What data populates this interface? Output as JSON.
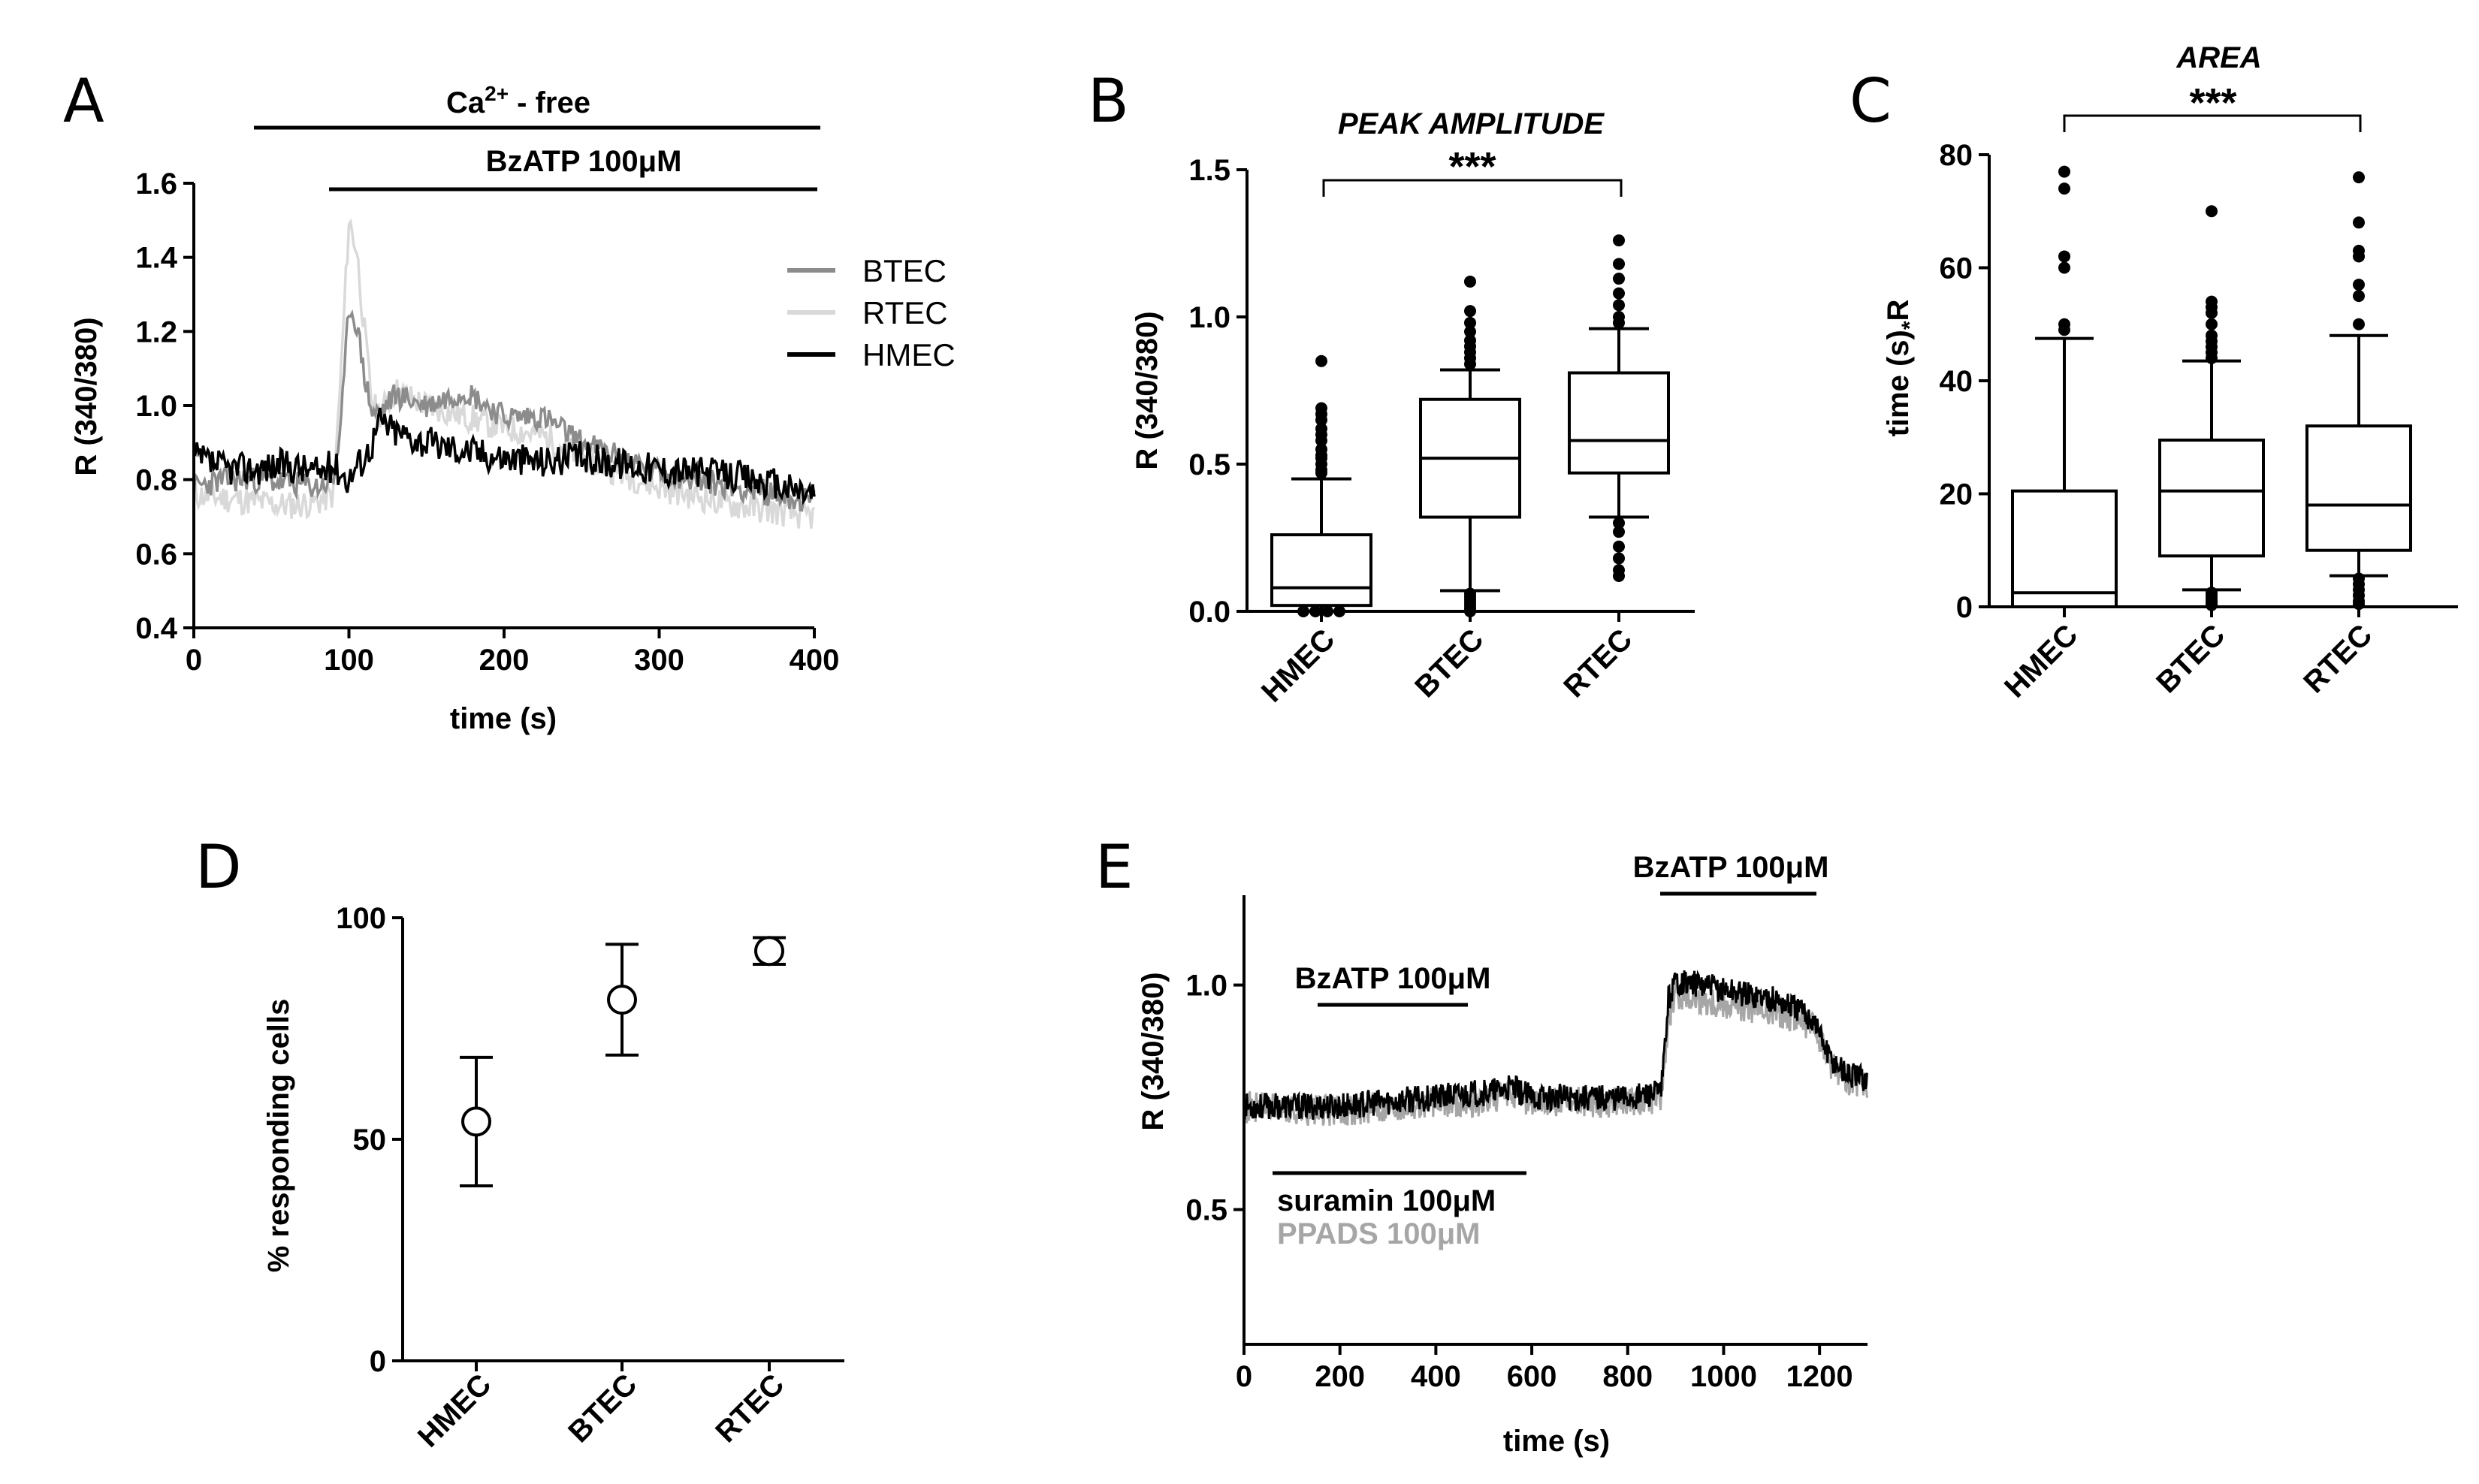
{
  "panels": {
    "A": {
      "letter": "A",
      "ca_label": "Ca",
      "ca_sup": "2+",
      "ca_suffix": " - free",
      "bzatp_label": "BzATP 100μM"
    },
    "B": {
      "letter": "B"
    },
    "C": {
      "letter": "C"
    },
    "D": {
      "letter": "D"
    },
    "E": {
      "letter": "E",
      "bzatp_label_1": "BzATP 100μM",
      "bzatp_label_2": "BzATP 100μM",
      "suramin_label": "suramin 100μM",
      "ppads_label": "PPADS 100μM"
    }
  },
  "colors": {
    "BTEC": "#8c8c8c",
    "RTEC": "#d9d9d9",
    "HMEC": "#000000",
    "suramin": "#000000",
    "PPADS": "#a6a6a6"
  },
  "chart_data": [
    {
      "id": "A",
      "type": "line",
      "xlabel": "time (s)",
      "ylabel": "R (340/380)",
      "xlim": [
        0,
        400
      ],
      "ylim": [
        0.4,
        1.6
      ],
      "xticks": [
        "0",
        "100",
        "200",
        "300",
        "400"
      ],
      "yticks": [
        "0.4",
        "0.6",
        "0.8",
        "1.0",
        "1.2",
        "1.4",
        "1.6"
      ],
      "legend": [
        "BTEC",
        "RTEC",
        "HMEC"
      ],
      "series": [
        {
          "name": "BTEC",
          "x": [
            0,
            20,
            40,
            60,
            80,
            90,
            95,
            100,
            105,
            110,
            115,
            120,
            130,
            150,
            175,
            200,
            225,
            250,
            300,
            350,
            400
          ],
          "y": [
            0.78,
            0.8,
            0.8,
            0.79,
            0.78,
            0.8,
            0.95,
            1.27,
            1.22,
            1.08,
            0.98,
            0.98,
            1.03,
            1.0,
            1.04,
            0.97,
            0.97,
            0.9,
            0.82,
            0.78,
            0.74
          ]
        },
        {
          "name": "RTEC",
          "x": [
            0,
            20,
            40,
            60,
            80,
            90,
            95,
            100,
            105,
            110,
            115,
            120,
            130,
            150,
            175,
            200,
            225,
            250,
            300,
            350,
            400
          ],
          "y": [
            0.76,
            0.75,
            0.74,
            0.73,
            0.74,
            0.76,
            1.1,
            1.5,
            1.42,
            1.2,
            1.0,
            0.98,
            1.04,
            1.0,
            0.97,
            0.94,
            0.92,
            0.86,
            0.78,
            0.73,
            0.7
          ]
        },
        {
          "name": "HMEC",
          "x": [
            0,
            20,
            40,
            60,
            80,
            90,
            95,
            100,
            105,
            110,
            115,
            120,
            130,
            150,
            175,
            200,
            225,
            250,
            300,
            350,
            400
          ],
          "y": [
            0.86,
            0.83,
            0.83,
            0.84,
            0.82,
            0.84,
            0.82,
            0.8,
            0.84,
            0.86,
            0.9,
            0.96,
            0.93,
            0.9,
            0.88,
            0.86,
            0.85,
            0.86,
            0.83,
            0.81,
            0.76
          ]
        }
      ]
    },
    {
      "id": "B",
      "type": "box",
      "title": "PEAK AMPLITUDE",
      "ylabel": "R (340/380)",
      "categories": [
        "HMEC",
        "BTEC",
        "RTEC"
      ],
      "ylim": [
        0,
        1.5
      ],
      "yticks": [
        "0.0",
        "0.5",
        "1.0",
        "1.5"
      ],
      "significance": "***",
      "boxes": [
        {
          "name": "HMEC",
          "whisker_low": 0.0,
          "q1": 0.02,
          "median": 0.08,
          "q3": 0.26,
          "whisker_high": 0.45,
          "outliers": [
            0.47,
            0.48,
            0.5,
            0.52,
            0.53,
            0.55,
            0.58,
            0.6,
            0.62,
            0.65,
            0.67,
            0.69,
            0.85,
            0.0,
            0.0,
            0.0,
            0.0
          ]
        },
        {
          "name": "BTEC",
          "whisker_low": 0.07,
          "q1": 0.32,
          "median": 0.52,
          "q3": 0.72,
          "whisker_high": 0.82,
          "outliers": [
            0.84,
            0.86,
            0.88,
            0.9,
            0.92,
            0.95,
            0.98,
            1.02,
            1.12,
            0.06,
            0.05,
            0.04,
            0.03,
            0.02,
            0.01,
            0.0
          ]
        },
        {
          "name": "RTEC",
          "whisker_low": 0.32,
          "q1": 0.47,
          "median": 0.58,
          "q3": 0.81,
          "whisker_high": 0.96,
          "outliers": [
            0.98,
            1.0,
            1.04,
            1.08,
            1.13,
            1.18,
            1.26,
            0.3,
            0.27,
            0.22,
            0.18,
            0.14,
            0.12
          ]
        }
      ]
    },
    {
      "id": "C",
      "type": "box",
      "title": "AREA",
      "ylabel_main": "time (s)",
      "ylabel_op": "*",
      "ylabel_end": "R",
      "categories": [
        "HMEC",
        "BTEC",
        "RTEC"
      ],
      "ylim": [
        0,
        80
      ],
      "yticks": [
        "0",
        "20",
        "40",
        "60",
        "80"
      ],
      "significance": "***",
      "boxes": [
        {
          "name": "HMEC",
          "whisker_low": 0,
          "q1": 0,
          "median": 2.5,
          "q3": 20.5,
          "whisker_high": 47.5,
          "outliers": [
            49,
            50,
            60,
            62,
            74,
            77
          ]
        },
        {
          "name": "BTEC",
          "whisker_low": 3,
          "q1": 9,
          "median": 20.5,
          "q3": 29.5,
          "whisker_high": 43.5,
          "outliers": [
            44,
            45,
            46,
            47,
            48,
            50,
            52,
            53,
            54,
            70,
            2.5,
            2,
            1.5,
            1,
            0.8,
            0.5,
            0.3
          ]
        },
        {
          "name": "RTEC",
          "whisker_low": 5.5,
          "q1": 10,
          "median": 18,
          "q3": 32,
          "whisker_high": 48,
          "outliers": [
            50,
            55,
            57,
            62,
            63,
            68,
            76,
            5,
            4,
            3,
            2,
            1,
            0.5
          ]
        }
      ]
    },
    {
      "id": "D",
      "type": "scatter",
      "ylabel": "% responding cells",
      "categories": [
        "HMEC",
        "BTEC",
        "RTEC"
      ],
      "ylim": [
        0,
        100
      ],
      "yticks": [
        "0",
        "50",
        "100"
      ],
      "points": [
        {
          "name": "HMEC",
          "mean": 54,
          "low": 39.5,
          "high": 68.5
        },
        {
          "name": "BTEC",
          "mean": 81.5,
          "low": 69,
          "high": 94
        },
        {
          "name": "RTEC",
          "mean": 92.5,
          "low": 89.5,
          "high": 95.5
        }
      ]
    },
    {
      "id": "E",
      "type": "line",
      "xlabel": "time (s)",
      "ylabel": "R (340/380)",
      "xlim": [
        0,
        1300
      ],
      "ylim": [
        0.2,
        1.2
      ],
      "xticks": [
        "0",
        "200",
        "400",
        "600",
        "800",
        "1000",
        "1200"
      ],
      "yticks": [
        "0.5",
        "1.0"
      ],
      "series": [
        {
          "name": "PPADS 100μM",
          "x": [
            0,
            100,
            200,
            300,
            400,
            500,
            560,
            600,
            700,
            800,
            870,
            885,
            900,
            950,
            1000,
            1050,
            1100,
            1150,
            1190,
            1220,
            1260,
            1300
          ],
          "y": [
            0.73,
            0.72,
            0.72,
            0.73,
            0.74,
            0.74,
            0.76,
            0.74,
            0.74,
            0.74,
            0.75,
            0.92,
            0.98,
            0.97,
            0.96,
            0.95,
            0.94,
            0.93,
            0.9,
            0.83,
            0.79,
            0.78
          ]
        },
        {
          "name": "suramin 100μM",
          "x": [
            0,
            100,
            200,
            300,
            400,
            500,
            560,
            600,
            700,
            800,
            870,
            885,
            900,
            950,
            1000,
            1050,
            1100,
            1150,
            1190,
            1220,
            1260,
            1300
          ],
          "y": [
            0.73,
            0.73,
            0.73,
            0.74,
            0.75,
            0.76,
            0.77,
            0.75,
            0.75,
            0.75,
            0.76,
            0.97,
            1.01,
            1.0,
            0.99,
            0.98,
            0.97,
            0.95,
            0.92,
            0.84,
            0.8,
            0.79
          ]
        }
      ]
    }
  ]
}
